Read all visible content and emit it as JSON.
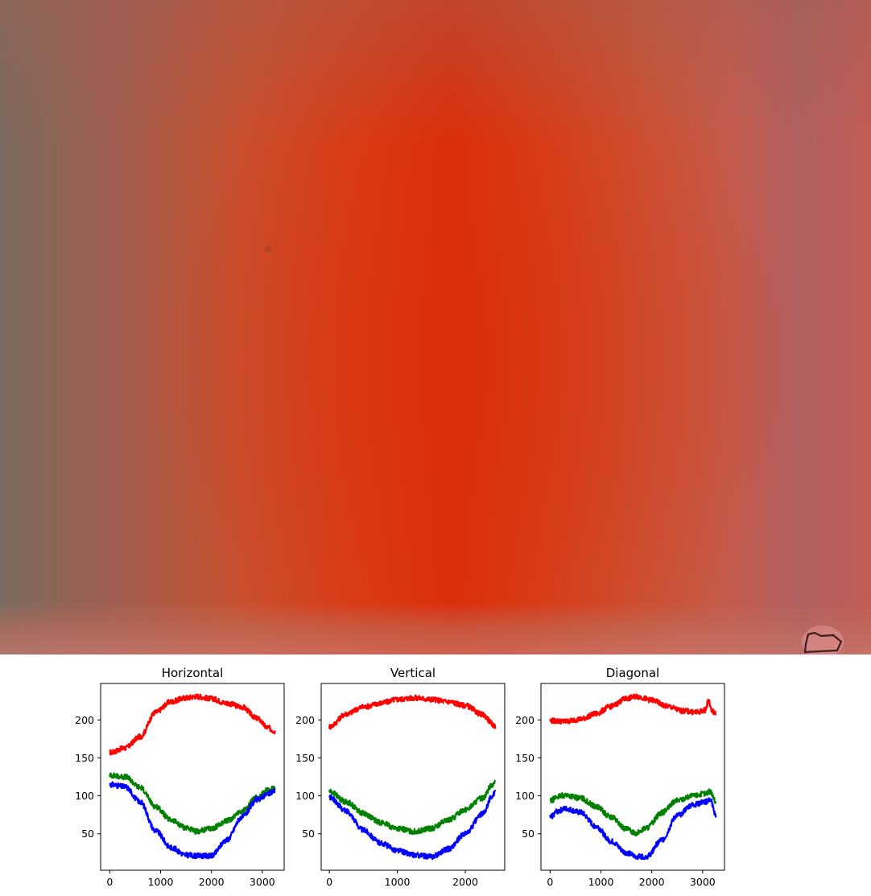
{
  "photo": {
    "description_icon": "photo-image",
    "colors": {
      "center": "#dc2c0a",
      "edge_left": "#7a6a5e",
      "edge_right": "#bf5a52",
      "bottom_band": "#b66a5c"
    }
  },
  "chart_data": [
    {
      "type": "line",
      "title": "Horizontal",
      "xlabel": "",
      "ylabel": "",
      "xlim": [
        -180,
        3430
      ],
      "ylim": [
        2,
        248
      ],
      "xticks": [
        0,
        1000,
        2000,
        3000
      ],
      "yticks": [
        50,
        100,
        150,
        200
      ],
      "legend": "none",
      "grid": false,
      "series": [
        {
          "color": "#ff0000",
          "x": [
            0,
            300,
            600,
            900,
            1200,
            1500,
            1700,
            2000,
            2300,
            2600,
            2900,
            3100,
            3250
          ],
          "values": [
            157,
            163,
            178,
            210,
            224,
            229,
            231,
            228,
            222,
            217,
            202,
            190,
            185
          ]
        },
        {
          "color": "#008000",
          "x": [
            0,
            300,
            600,
            900,
            1200,
            1500,
            1700,
            2000,
            2300,
            2600,
            2900,
            3100,
            3250
          ],
          "values": [
            127,
            125,
            111,
            86,
            68,
            58,
            53,
            57,
            67,
            80,
            98,
            107,
            110
          ]
        },
        {
          "color": "#0000ff",
          "x": [
            0,
            300,
            600,
            900,
            1200,
            1500,
            1700,
            2000,
            2300,
            2600,
            2900,
            3100,
            3250
          ],
          "values": [
            115,
            112,
            92,
            54,
            32,
            22,
            21,
            21,
            42,
            72,
            95,
            102,
            107
          ]
        }
      ]
    },
    {
      "type": "line",
      "title": "Vertical",
      "xlabel": "",
      "ylabel": "",
      "xlim": [
        -120,
        2580
      ],
      "ylim": [
        2,
        248
      ],
      "xticks": [
        0,
        1000,
        2000
      ],
      "yticks": [
        50,
        100,
        150,
        200
      ],
      "legend": "none",
      "grid": false,
      "series": [
        {
          "color": "#ff0000",
          "x": [
            0,
            250,
            500,
            750,
            1000,
            1250,
            1500,
            1750,
            2000,
            2250,
            2440
          ],
          "values": [
            191,
            208,
            217,
            222,
            227,
            229,
            227,
            224,
            219,
            207,
            192
          ]
        },
        {
          "color": "#008000",
          "x": [
            0,
            250,
            500,
            750,
            1000,
            1250,
            1500,
            1750,
            2000,
            2250,
            2400,
            2440
          ],
          "values": [
            106,
            92,
            77,
            65,
            57,
            53,
            57,
            68,
            82,
            97,
            115,
            118
          ]
        },
        {
          "color": "#0000ff",
          "x": [
            0,
            250,
            500,
            750,
            1000,
            1250,
            1500,
            1750,
            2000,
            2250,
            2400,
            2440
          ],
          "values": [
            98,
            80,
            55,
            38,
            28,
            22,
            20,
            30,
            50,
            76,
            100,
            104
          ]
        }
      ]
    },
    {
      "type": "line",
      "title": "Diagonal",
      "xlabel": "",
      "ylabel": "",
      "xlim": [
        -180,
        3430
      ],
      "ylim": [
        2,
        248
      ],
      "xticks": [
        0,
        1000,
        2000,
        3000
      ],
      "yticks": [
        50,
        100,
        150,
        200
      ],
      "legend": "none",
      "grid": false,
      "series": [
        {
          "color": "#ff0000",
          "x": [
            0,
            300,
            600,
            900,
            1200,
            1500,
            1700,
            2000,
            2300,
            2600,
            2900,
            3050,
            3120,
            3180,
            3260
          ],
          "values": [
            199,
            198,
            201,
            208,
            218,
            228,
            231,
            226,
            218,
            212,
            210,
            213,
            226,
            212,
            208
          ]
        },
        {
          "color": "#008000",
          "x": [
            0,
            150,
            300,
            600,
            900,
            1200,
            1500,
            1700,
            1900,
            2200,
            2500,
            2800,
            3050,
            3150,
            3260
          ],
          "values": [
            93,
            99,
            101,
            97,
            86,
            72,
            56,
            51,
            58,
            78,
            94,
            100,
            103,
            106,
            92
          ]
        },
        {
          "color": "#0000ff",
          "x": [
            0,
            150,
            300,
            600,
            900,
            1200,
            1500,
            1700,
            1900,
            2200,
            2500,
            2800,
            3050,
            3150,
            3260
          ],
          "values": [
            72,
            80,
            83,
            78,
            60,
            40,
            25,
            20,
            20,
            42,
            74,
            88,
            92,
            95,
            74
          ]
        }
      ]
    }
  ]
}
